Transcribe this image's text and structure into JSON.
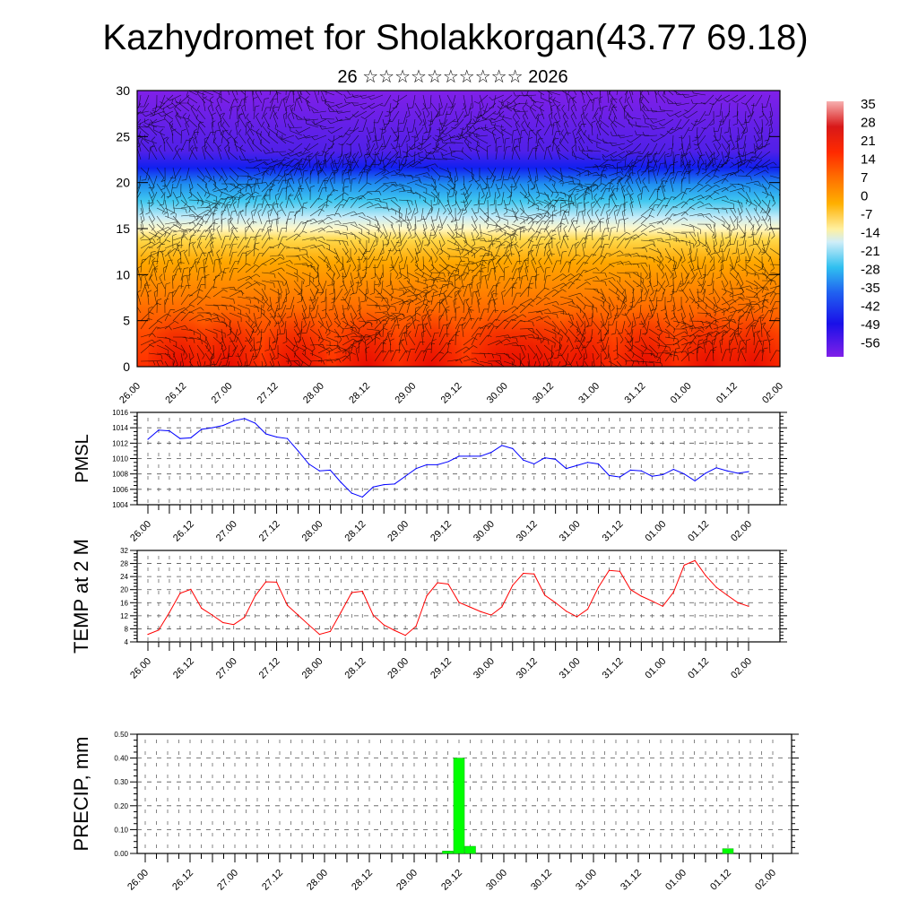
{
  "header": {
    "title": "Kazhydromet for Sholakkorgan(43.77 69.18)",
    "subtitle": "26 ☆☆☆☆☆☆☆☆☆☆ 2026"
  },
  "x_tick_labels": [
    "26.00",
    "26.12",
    "27.00",
    "27.12",
    "28.00",
    "28.12",
    "29.00",
    "29.12",
    "30.00",
    "30.12",
    "31.00",
    "31.12",
    "01.00",
    "01.12",
    "02.00"
  ],
  "chart_data": [
    {
      "type": "heatmap",
      "title": "Vertical cross-section: temperature with wind barbs",
      "ylim": [
        0,
        30
      ],
      "yticks": [
        "0",
        "5",
        "10",
        "15",
        "20",
        "25",
        "30"
      ],
      "colorbar": {
        "labels": [
          "35",
          "28",
          "21",
          "14",
          "7",
          "0",
          "-7",
          "-14",
          "-21",
          "-28",
          "-35",
          "-42",
          "-49",
          "-56"
        ],
        "colors": [
          "#f7a8a8",
          "#d81818",
          "#ff2a00",
          "#ff6a00",
          "#ff9a00",
          "#ffc000",
          "#ffe060",
          "#fff8c0",
          "#c8ecf8",
          "#30c8f0",
          "#1890f0",
          "#2848f0",
          "#2010e8",
          "#8020e8"
        ]
      }
    },
    {
      "type": "line",
      "ylabel": "PMSL",
      "ylim": [
        1004,
        1016
      ],
      "yticks": [
        "1004",
        "1006",
        "1008",
        "1010",
        "1012",
        "1014",
        "1016"
      ],
      "color": "#0000ff",
      "values": [
        1012.5,
        1013.7,
        1013.6,
        1012.6,
        1012.7,
        1013.8,
        1014.0,
        1014.3,
        1014.9,
        1015.2,
        1014.6,
        1013.2,
        1012.8,
        1012.6,
        1011.0,
        1009.3,
        1008.4,
        1008.5,
        1006.9,
        1005.5,
        1005.0,
        1006.3,
        1006.6,
        1006.7,
        1007.7,
        1008.7,
        1009.2,
        1009.2,
        1009.6,
        1010.3,
        1010.3,
        1010.3,
        1010.8,
        1011.7,
        1011.3,
        1009.8,
        1009.3,
        1010.1,
        1009.9,
        1008.7,
        1009.1,
        1009.5,
        1009.3,
        1007.8,
        1007.6,
        1008.5,
        1008.4,
        1007.7,
        1007.9,
        1008.6,
        1008.0,
        1007.1,
        1008.1,
        1008.8,
        1008.4,
        1008.1,
        1008.3
      ]
    },
    {
      "type": "line",
      "ylabel": "TEMP at 2 M",
      "ylim": [
        4,
        32
      ],
      "yticks": [
        "4",
        "8",
        "12",
        "16",
        "20",
        "24",
        "28",
        "32"
      ],
      "color": "#ff0000",
      "values": [
        6.3,
        7.6,
        13.0,
        18.9,
        20.1,
        14.3,
        12.2,
        9.9,
        9.3,
        11.5,
        18.1,
        22.4,
        22.3,
        15.2,
        12.2,
        9.2,
        6.3,
        7.2,
        13.1,
        19.1,
        19.5,
        12.2,
        9.2,
        7.5,
        6.0,
        8.8,
        18.1,
        22.1,
        21.7,
        16.1,
        14.7,
        13.3,
        12.2,
        14.7,
        21.3,
        25.0,
        24.8,
        18.3,
        16.0,
        13.4,
        11.7,
        14.0,
        20.7,
        25.9,
        25.6,
        20.0,
        18.0,
        16.5,
        14.9,
        19.2,
        27.5,
        28.9,
        24.3,
        20.7,
        18.3,
        16.0,
        14.9
      ]
    },
    {
      "type": "bar",
      "ylabel": "PRECIP, mm",
      "ylim": [
        0,
        0.5
      ],
      "yticks": [
        "0.00",
        "0.10",
        "0.20",
        "0.30",
        "0.40",
        "0.50"
      ],
      "color": "#00ff00",
      "values": [
        0,
        0,
        0,
        0,
        0,
        0,
        0,
        0,
        0,
        0,
        0,
        0,
        0,
        0,
        0,
        0,
        0,
        0,
        0,
        0,
        0,
        0,
        0,
        0,
        0,
        0,
        0,
        0.01,
        0.4,
        0.03,
        0,
        0,
        0,
        0,
        0,
        0,
        0,
        0,
        0,
        0,
        0,
        0,
        0,
        0,
        0,
        0,
        0,
        0,
        0,
        0,
        0,
        0,
        0.02,
        0,
        0,
        0,
        0
      ]
    }
  ]
}
